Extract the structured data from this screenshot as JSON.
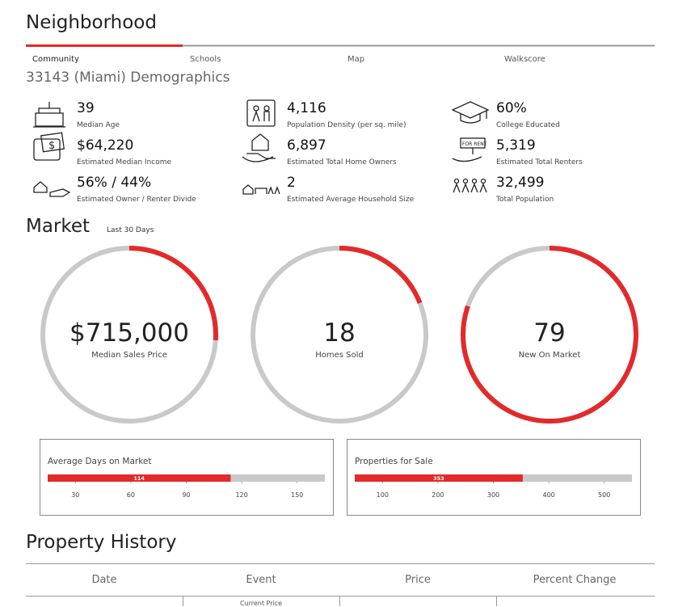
{
  "header": {
    "title": "Neighborhood",
    "tabs": [
      "Community",
      "Schools",
      "Map",
      "Walkscore"
    ]
  },
  "demographics": {
    "title": "33143 (Miami) Demographics",
    "stats": [
      {
        "value": "39",
        "label": "Median Age"
      },
      {
        "value": "4,116",
        "label": "Population Density (per sq. mile)"
      },
      {
        "value": "60%",
        "label": "College Educated"
      },
      {
        "value": "$64,220",
        "label": "Estimated Median Income"
      },
      {
        "value": "6,897",
        "label": "Estimated Total Home Owners"
      },
      {
        "value": "5,319",
        "label": "Estimated Total Renters"
      },
      {
        "value": "56% / 44%",
        "label": "Estimated Owner / Renter Divide"
      },
      {
        "value": "2",
        "label": "Estimated Average Household Size"
      },
      {
        "value": "32,499",
        "label": "Total Population"
      }
    ]
  },
  "market": {
    "title": "Market",
    "period": "Last 30 Days",
    "rings": [
      {
        "value": "$715,000",
        "label": "Median Sales Price"
      },
      {
        "value": "18",
        "label": "Homes Sold"
      },
      {
        "value": "79",
        "label": "New On Market"
      }
    ],
    "gauges": [
      {
        "title": "Average Days on Market",
        "value": 114,
        "xlim": [
          15,
          165
        ],
        "xticks": [
          30,
          60,
          90,
          120,
          150
        ]
      },
      {
        "title": "Properties for Sale",
        "value": 353,
        "xlim": [
          50,
          550
        ],
        "xticks": [
          100,
          200,
          300,
          400,
          500
        ]
      }
    ]
  },
  "history": {
    "title": "Property History",
    "table": {
      "columns": [
        "Date",
        "Event",
        "Price",
        "Percent Change"
      ],
      "rows": [
        [
          "",
          "Current Price",
          "",
          ""
        ]
      ]
    }
  }
}
